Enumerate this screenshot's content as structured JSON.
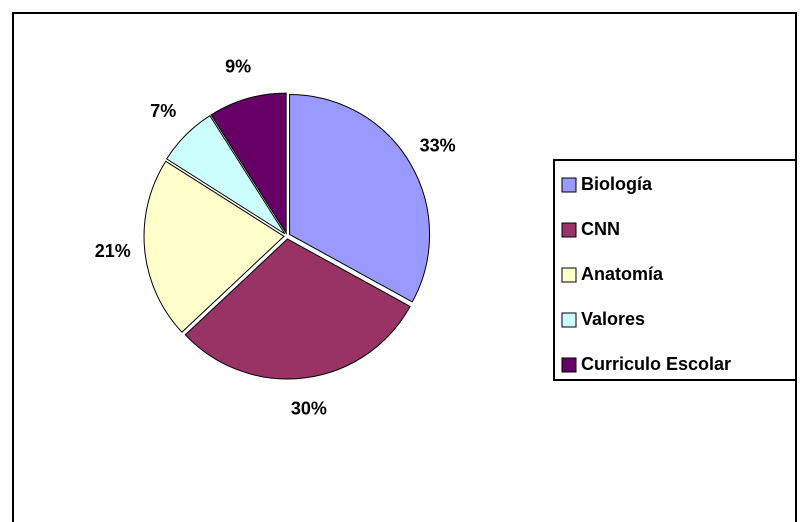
{
  "chart_data": {
    "type": "pie",
    "categories": [
      "Biología",
      "CNN",
      "Anatomía",
      "Valores",
      "Curriculo Escolar"
    ],
    "values": [
      33,
      30,
      21,
      7,
      9
    ],
    "value_labels": [
      "33%",
      "30%",
      "21%",
      "7%",
      "9%"
    ],
    "colors": [
      "#9999ff",
      "#993366",
      "#ffffcc",
      "#ccffff",
      "#660066"
    ],
    "legend": "right"
  }
}
